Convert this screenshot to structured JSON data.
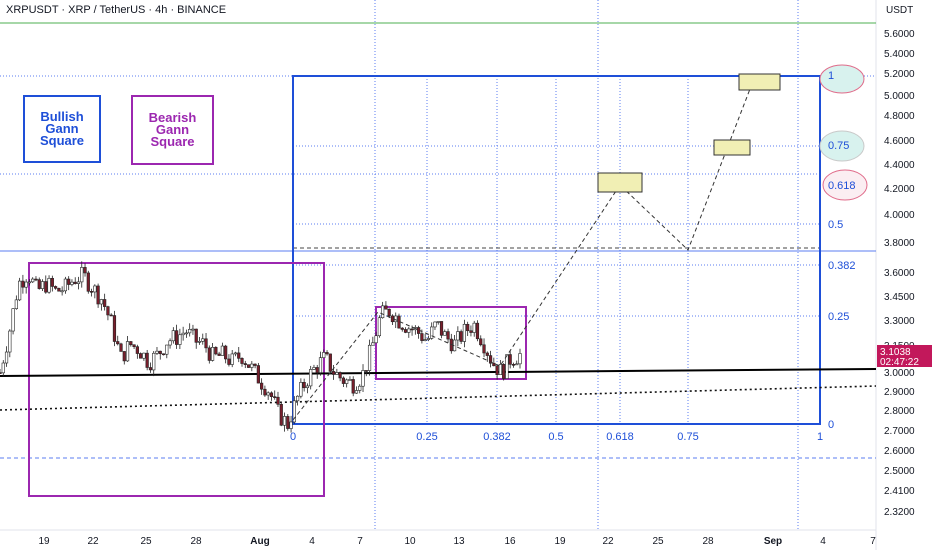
{
  "header": {
    "title": "XRPUSDT · XRP / TetherUS · 4h · BINANCE",
    "currency": "USDT"
  },
  "legend": {
    "bullish": "Bullish Gann Square",
    "bearish": "Bearish Gann Square"
  },
  "price_tag": {
    "price": "3.1038",
    "countdown": "02:47:22"
  },
  "colors": {
    "bull": "#1e4fd8",
    "bear": "#9c27b0",
    "candle_up": "#ffffff",
    "candle_down": "#7a1e2c",
    "price_tag": "#c2185b",
    "target_box": "#f1efb4",
    "grid": "#4f7df0",
    "top_line": "#4caf50"
  },
  "chart_data": {
    "type": "candlestick",
    "y_axis": {
      "labels": [
        "5.6000",
        "5.4000",
        "5.2000",
        "5.0000",
        "4.8000",
        "4.6000",
        "4.4000",
        "4.2000",
        "4.0000",
        "3.8000",
        "3.6000",
        "3.4500",
        "3.3000",
        "3.1500",
        "3.0000",
        "2.9000",
        "2.8000",
        "2.7000",
        "2.6000",
        "2.5000",
        "2.4100",
        "2.3200"
      ],
      "scale": "log"
    },
    "x_axis": {
      "labels": [
        "19",
        "22",
        "25",
        "28",
        "Aug",
        "4",
        "7",
        "10",
        "13",
        "16",
        "19",
        "22",
        "25",
        "28",
        "Sep",
        "4",
        "7"
      ]
    },
    "gann_x_labels": [
      "0",
      "0.25",
      "0.382",
      "0.5",
      "0.618",
      "0.75",
      "1"
    ],
    "gann_y_labels": [
      "1",
      "0.75",
      "0.618",
      "0.5",
      "0.382",
      "0.25",
      "0"
    ],
    "price_path": [
      3.02,
      3.25,
      3.55,
      3.62,
      3.5,
      3.55,
      3.5,
      3.52,
      3.58,
      3.6,
      3.52,
      3.45,
      3.3,
      3.1,
      3.18,
      3.15,
      3.08,
      3.12,
      3.2,
      3.22,
      3.26,
      3.2,
      3.18,
      3.1,
      3.12,
      3.08,
      3.12,
      3.05,
      2.98,
      2.92,
      2.8,
      2.75,
      2.88,
      2.98,
      3.05,
      3.1,
      3.02,
      2.98,
      2.96,
      3.0,
      3.15,
      3.35,
      3.38,
      3.32,
      3.28,
      3.25,
      3.2,
      3.3,
      3.22,
      3.18,
      3.25,
      3.3,
      3.2,
      3.08,
      3.02,
      3.1,
      3.12
    ]
  }
}
